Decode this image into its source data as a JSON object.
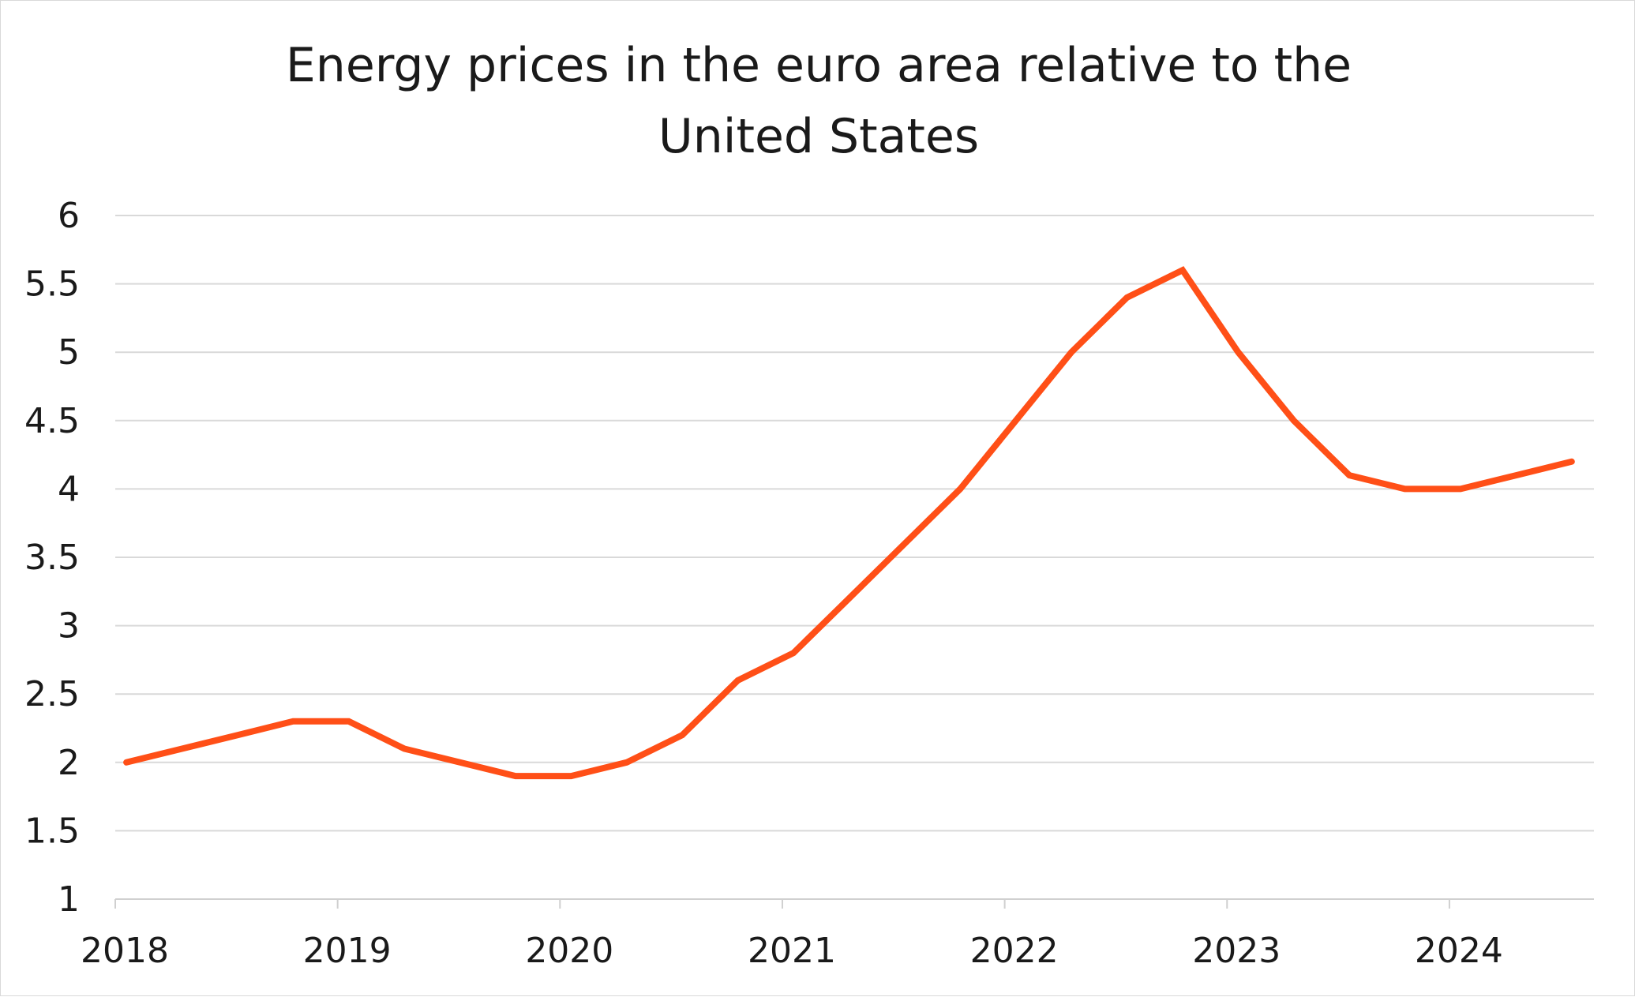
{
  "chart_data": {
    "type": "line",
    "title_lines": [
      "Energy prices in the euro area relative to the",
      "United States"
    ],
    "xlabel": "",
    "ylabel": "",
    "ylim": [
      1,
      6
    ],
    "yticks": [
      "1",
      "1.5",
      "2",
      "2.5",
      "3",
      "3.5",
      "4",
      "4.5",
      "5",
      "5.5",
      "6"
    ],
    "xlim": [
      2018,
      2024.65
    ],
    "xticks": [
      "2018",
      "2019",
      "2020",
      "2021",
      "2022",
      "2023",
      "2024"
    ],
    "grid": true,
    "legend": "none",
    "series": [
      {
        "color": "#FF4F17",
        "x": [
          2018.05,
          2018.3,
          2018.55,
          2018.8,
          2019.05,
          2019.3,
          2019.55,
          2019.8,
          2020.05,
          2020.3,
          2020.55,
          2020.8,
          2021.05,
          2021.3,
          2021.55,
          2021.8,
          2022.05,
          2022.3,
          2022.55,
          2022.8,
          2023.05,
          2023.3,
          2023.55,
          2023.8,
          2024.05,
          2024.3,
          2024.55
        ],
        "y": [
          2.0,
          2.1,
          2.2,
          2.3,
          2.3,
          2.1,
          2.0,
          1.9,
          1.9,
          2.0,
          2.2,
          2.6,
          2.8,
          3.2,
          3.6,
          4.0,
          4.5,
          5.0,
          5.4,
          5.6,
          5.0,
          4.5,
          4.1,
          4.0,
          4.0,
          4.1,
          4.2
        ]
      }
    ]
  }
}
